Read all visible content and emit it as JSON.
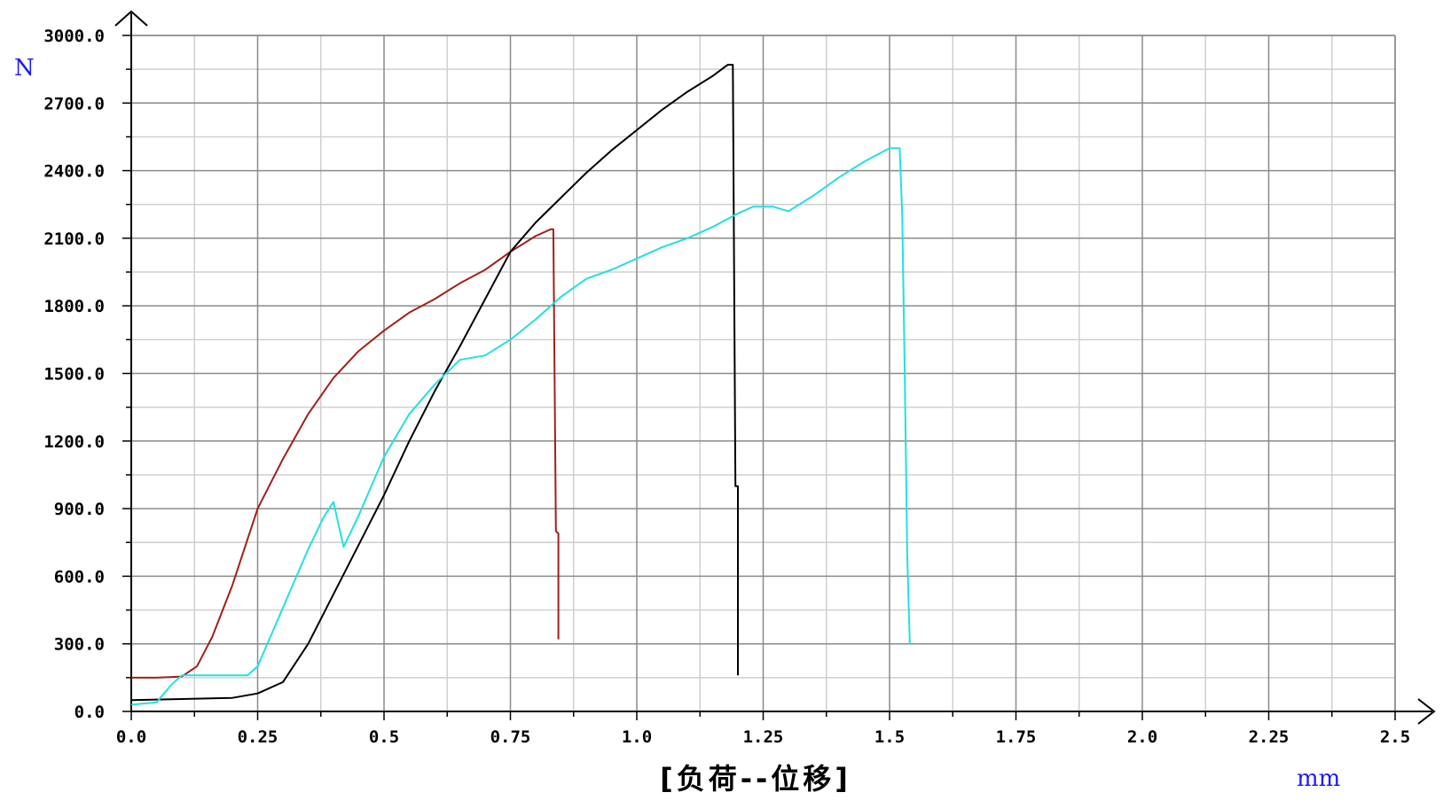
{
  "chart_data": {
    "type": "line",
    "title": "[负荷--位移]",
    "x_unit": "mm",
    "y_unit": "N",
    "xlim": [
      0,
      2.5
    ],
    "ylim": [
      0,
      3000
    ],
    "grid": true,
    "x_ticks": [
      {
        "value": 0,
        "label": "0.0"
      },
      {
        "value": 0.25,
        "label": "0.25"
      },
      {
        "value": 0.5,
        "label": "0.5"
      },
      {
        "value": 0.75,
        "label": "0.75"
      },
      {
        "value": 1.0,
        "label": "1.0"
      },
      {
        "value": 1.25,
        "label": "1.25"
      },
      {
        "value": 1.5,
        "label": "1.5"
      },
      {
        "value": 1.75,
        "label": "1.75"
      },
      {
        "value": 2.0,
        "label": "2.0"
      },
      {
        "value": 2.25,
        "label": "2.25"
      },
      {
        "value": 2.5,
        "label": "2.5"
      }
    ],
    "y_ticks": [
      {
        "value": 0,
        "label": "0.0"
      },
      {
        "value": 300,
        "label": "300.0"
      },
      {
        "value": 600,
        "label": "600.0"
      },
      {
        "value": 900,
        "label": "900.0"
      },
      {
        "value": 1200,
        "label": "1200.0"
      },
      {
        "value": 1500,
        "label": "1500.0"
      },
      {
        "value": 1800,
        "label": "1800.0"
      },
      {
        "value": 2100,
        "label": "2100.0"
      },
      {
        "value": 2400,
        "label": "2400.0"
      },
      {
        "value": 2700,
        "label": "2700.0"
      },
      {
        "value": 3000,
        "label": "3000.0"
      }
    ],
    "series": [
      {
        "color": "#a0201a",
        "points": [
          [
            0,
            150
          ],
          [
            0.05,
            150
          ],
          [
            0.1,
            155
          ],
          [
            0.13,
            200
          ],
          [
            0.16,
            330
          ],
          [
            0.2,
            560
          ],
          [
            0.25,
            900
          ],
          [
            0.3,
            1120
          ],
          [
            0.35,
            1320
          ],
          [
            0.4,
            1480
          ],
          [
            0.45,
            1600
          ],
          [
            0.5,
            1690
          ],
          [
            0.55,
            1770
          ],
          [
            0.6,
            1830
          ],
          [
            0.65,
            1900
          ],
          [
            0.7,
            1960
          ],
          [
            0.75,
            2040
          ],
          [
            0.8,
            2110
          ],
          [
            0.83,
            2140
          ],
          [
            0.835,
            2140
          ],
          [
            0.84,
            800
          ],
          [
            0.845,
            790
          ],
          [
            0.845,
            320
          ]
        ]
      },
      {
        "color": "#000000",
        "points": [
          [
            0,
            50
          ],
          [
            0.1,
            55
          ],
          [
            0.2,
            60
          ],
          [
            0.25,
            80
          ],
          [
            0.3,
            130
          ],
          [
            0.35,
            300
          ],
          [
            0.4,
            520
          ],
          [
            0.45,
            740
          ],
          [
            0.5,
            960
          ],
          [
            0.55,
            1200
          ],
          [
            0.6,
            1420
          ],
          [
            0.65,
            1620
          ],
          [
            0.7,
            1830
          ],
          [
            0.75,
            2040
          ],
          [
            0.8,
            2170
          ],
          [
            0.85,
            2280
          ],
          [
            0.9,
            2390
          ],
          [
            0.95,
            2490
          ],
          [
            1.0,
            2580
          ],
          [
            1.05,
            2670
          ],
          [
            1.1,
            2750
          ],
          [
            1.15,
            2820
          ],
          [
            1.18,
            2870
          ],
          [
            1.19,
            2870
          ],
          [
            1.195,
            1000
          ],
          [
            1.2,
            1000
          ],
          [
            1.2,
            160
          ]
        ]
      },
      {
        "color": "#22e0e0",
        "points": [
          [
            0,
            30
          ],
          [
            0.05,
            40
          ],
          [
            0.08,
            120
          ],
          [
            0.1,
            160
          ],
          [
            0.2,
            160
          ],
          [
            0.23,
            160
          ],
          [
            0.25,
            200
          ],
          [
            0.3,
            460
          ],
          [
            0.35,
            720
          ],
          [
            0.38,
            860
          ],
          [
            0.4,
            930
          ],
          [
            0.42,
            730
          ],
          [
            0.45,
            870
          ],
          [
            0.5,
            1130
          ],
          [
            0.55,
            1320
          ],
          [
            0.6,
            1450
          ],
          [
            0.65,
            1560
          ],
          [
            0.7,
            1580
          ],
          [
            0.75,
            1650
          ],
          [
            0.8,
            1740
          ],
          [
            0.85,
            1840
          ],
          [
            0.9,
            1920
          ],
          [
            0.95,
            1960
          ],
          [
            1.0,
            2010
          ],
          [
            1.05,
            2060
          ],
          [
            1.1,
            2100
          ],
          [
            1.15,
            2150
          ],
          [
            1.2,
            2210
          ],
          [
            1.23,
            2240
          ],
          [
            1.27,
            2240
          ],
          [
            1.3,
            2220
          ],
          [
            1.35,
            2290
          ],
          [
            1.4,
            2370
          ],
          [
            1.45,
            2440
          ],
          [
            1.5,
            2500
          ],
          [
            1.52,
            2500
          ],
          [
            1.525,
            2200
          ],
          [
            1.53,
            1500
          ],
          [
            1.535,
            700
          ],
          [
            1.54,
            300
          ]
        ]
      }
    ]
  }
}
